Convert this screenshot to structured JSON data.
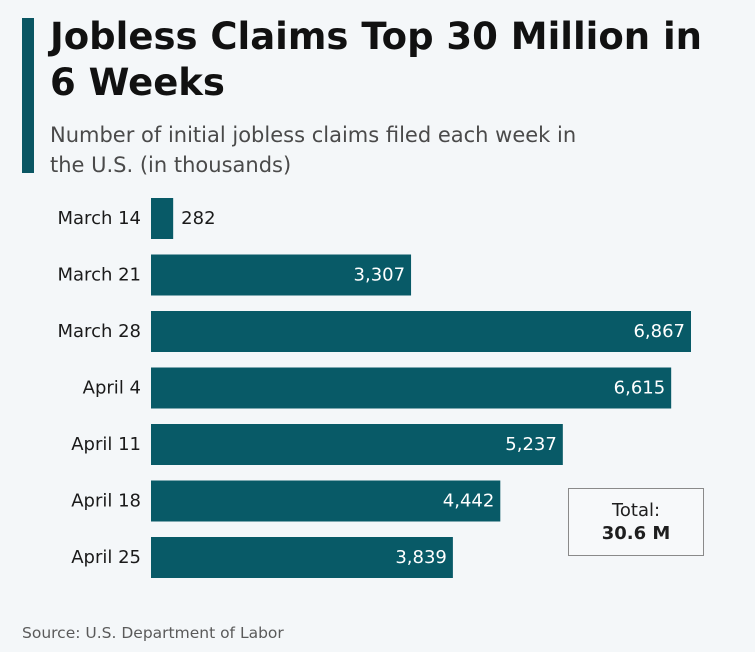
{
  "header": {
    "title": "Jobless Claims Top 30 Million in 6 Weeks",
    "subtitle": "Number of initial jobless claims filed each week in the U.S. (in thousands)"
  },
  "total": {
    "label": "Total:",
    "value": "30.6 M"
  },
  "footer": {
    "source": "Source: U.S. Department of Labor"
  },
  "colors": {
    "bar": "#085a67",
    "accent": "#0a5663",
    "label_inside": "#ffffff",
    "label_outside": "#1a1a1a",
    "category_text": "#1a1a1a"
  },
  "chart_data": {
    "type": "bar",
    "orientation": "horizontal",
    "categories": [
      "March 14",
      "March 21",
      "March 28",
      "April 4",
      "April 11",
      "April 18",
      "April 25"
    ],
    "values": [
      282,
      3307,
      6867,
      6615,
      5237,
      4442,
      3839
    ],
    "value_labels": [
      "282",
      "3,307",
      "6,867",
      "6,615",
      "5,237",
      "4,442",
      "3,839"
    ],
    "title": "Jobless Claims Top 30 Million in 6 Weeks",
    "subtitle": "Number of initial jobless claims filed each week in the U.S. (in thousands)",
    "xlabel": "",
    "ylabel": "",
    "xlim": [
      0,
      6867
    ],
    "grid": false,
    "legend": "none"
  }
}
